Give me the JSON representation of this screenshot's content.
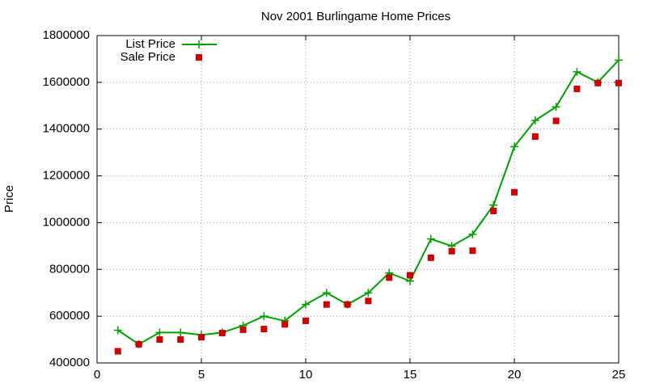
{
  "chart_data": {
    "type": "line",
    "title": "Nov 2001 Burlingame Home Prices",
    "y_label": "Price",
    "x": [
      1,
      2,
      3,
      4,
      5,
      6,
      7,
      8,
      9,
      10,
      11,
      12,
      13,
      14,
      15,
      16,
      17,
      18,
      19,
      20,
      21,
      22,
      23,
      24,
      25
    ],
    "series": [
      {
        "name": "List Price",
        "color": "#00a000",
        "mode": "lines+points",
        "values": [
          540000,
          480000,
          530000,
          530000,
          520000,
          530000,
          560000,
          600000,
          580000,
          650000,
          700000,
          650000,
          700000,
          785000,
          750000,
          930000,
          900000,
          950000,
          1075000,
          1325000,
          1437000,
          1495000,
          1645000,
          1600000,
          1695000
        ]
      },
      {
        "name": "Sale Price",
        "color": "#cc0000",
        "mode": "points",
        "values": [
          450000,
          480000,
          500000,
          500000,
          510000,
          528000,
          542000,
          545000,
          565000,
          580000,
          650000,
          650000,
          665000,
          765000,
          775000,
          850000,
          878000,
          880000,
          1050000,
          1130000,
          1368000,
          1435000,
          1572000,
          1597000,
          1597000
        ]
      }
    ],
    "xlim": [
      0,
      25
    ],
    "xticks": [
      0,
      5,
      10,
      15,
      20,
      25
    ],
    "ylim": [
      400000,
      1800000
    ],
    "yticks": [
      400000,
      600000,
      800000,
      1000000,
      1200000,
      1400000,
      1600000,
      1800000
    ],
    "grid": true,
    "legend_position": "top-left"
  }
}
